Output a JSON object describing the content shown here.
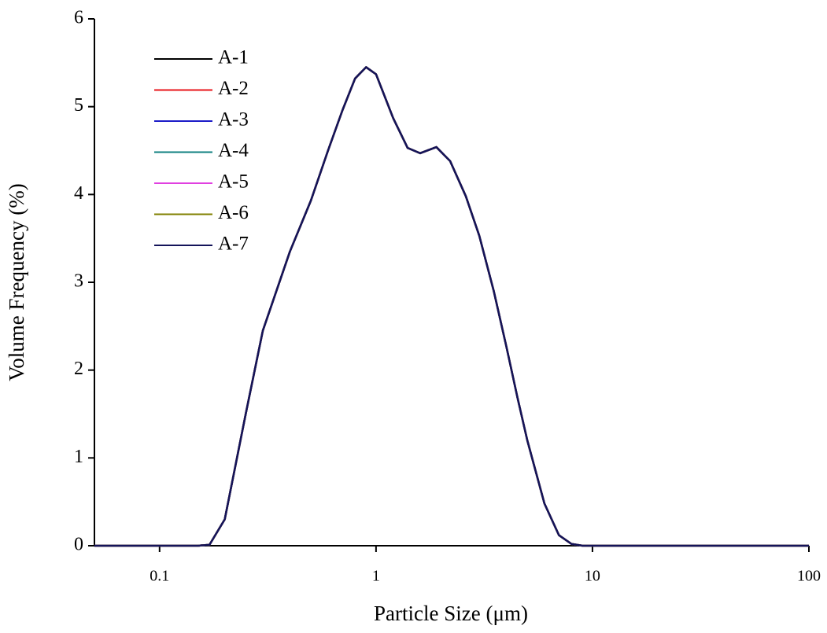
{
  "chart_data": {
    "type": "line",
    "xlabel": "Particle Size (μm)",
    "ylabel": "Volume Frequency (%)",
    "xscale": "log",
    "xlim": [
      0.05,
      100
    ],
    "xticks": [
      0.1,
      1,
      10,
      100
    ],
    "ylim": [
      0,
      6
    ],
    "yticks": [
      0,
      1,
      2,
      3,
      4,
      5,
      6
    ],
    "grid": false,
    "legend": "upper left",
    "x": [
      0.05,
      0.15,
      0.17,
      0.2,
      0.25,
      0.3,
      0.4,
      0.5,
      0.6,
      0.7,
      0.8,
      0.9,
      1.0,
      1.2,
      1.4,
      1.6,
      1.9,
      2.2,
      2.6,
      3,
      3.5,
      4,
      4.5,
      5,
      6,
      7,
      8,
      9,
      100
    ],
    "series": [
      {
        "name": "A-1",
        "color": "#000000",
        "values": [
          0,
          0,
          0.01,
          0.3,
          1.5,
          2.45,
          3.35,
          3.93,
          4.5,
          4.96,
          5.32,
          5.45,
          5.37,
          4.87,
          4.53,
          4.47,
          4.54,
          4.38,
          3.98,
          3.53,
          2.9,
          2.27,
          1.69,
          1.2,
          0.48,
          0.12,
          0.02,
          0,
          0
        ]
      },
      {
        "name": "A-2",
        "color": "#e8141a",
        "values": [
          0,
          0,
          0.01,
          0.3,
          1.5,
          2.45,
          3.35,
          3.93,
          4.5,
          4.96,
          5.32,
          5.45,
          5.37,
          4.87,
          4.53,
          4.47,
          4.54,
          4.38,
          3.98,
          3.53,
          2.9,
          2.27,
          1.69,
          1.2,
          0.48,
          0.12,
          0.02,
          0,
          0
        ]
      },
      {
        "name": "A-3",
        "color": "#1c1cc8",
        "values": [
          0,
          0,
          0.01,
          0.3,
          1.5,
          2.45,
          3.35,
          3.93,
          4.5,
          4.96,
          5.32,
          5.45,
          5.37,
          4.87,
          4.53,
          4.47,
          4.54,
          4.38,
          3.98,
          3.53,
          2.9,
          2.27,
          1.69,
          1.2,
          0.48,
          0.12,
          0.02,
          0,
          0
        ]
      },
      {
        "name": "A-4",
        "color": "#0f8080",
        "values": [
          0,
          0,
          0.01,
          0.3,
          1.5,
          2.45,
          3.35,
          3.93,
          4.5,
          4.96,
          5.32,
          5.45,
          5.37,
          4.87,
          4.53,
          4.47,
          4.54,
          4.38,
          3.98,
          3.53,
          2.9,
          2.27,
          1.69,
          1.2,
          0.48,
          0.12,
          0.02,
          0,
          0
        ]
      },
      {
        "name": "A-5",
        "color": "#e040e0",
        "values": [
          0,
          0,
          0.01,
          0.3,
          1.5,
          2.45,
          3.35,
          3.93,
          4.5,
          4.96,
          5.32,
          5.45,
          5.37,
          4.87,
          4.53,
          4.47,
          4.54,
          4.38,
          3.98,
          3.53,
          2.9,
          2.27,
          1.69,
          1.2,
          0.48,
          0.12,
          0.02,
          0,
          0
        ]
      },
      {
        "name": "A-6",
        "color": "#808000",
        "values": [
          0,
          0,
          0.01,
          0.3,
          1.5,
          2.45,
          3.35,
          3.93,
          4.5,
          4.96,
          5.32,
          5.45,
          5.37,
          4.87,
          4.53,
          4.47,
          4.54,
          4.38,
          3.98,
          3.53,
          2.9,
          2.27,
          1.69,
          1.2,
          0.48,
          0.12,
          0.02,
          0,
          0
        ]
      },
      {
        "name": "A-7",
        "color": "#14145a",
        "values": [
          0,
          0,
          0.01,
          0.3,
          1.5,
          2.45,
          3.35,
          3.93,
          4.5,
          4.96,
          5.32,
          5.45,
          5.37,
          4.87,
          4.53,
          4.47,
          4.54,
          4.38,
          3.98,
          3.53,
          2.9,
          2.27,
          1.69,
          1.2,
          0.48,
          0.12,
          0.02,
          0,
          0
        ]
      }
    ]
  }
}
